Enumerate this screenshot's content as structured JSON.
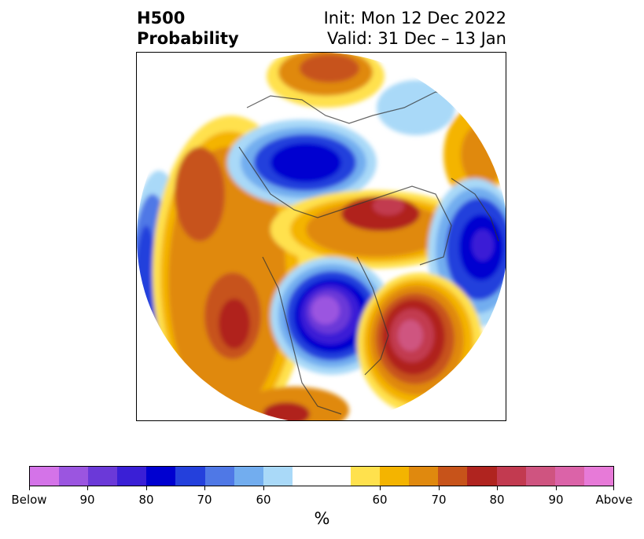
{
  "title": {
    "left_line1": "H500",
    "left_line2": "Probability",
    "right_line1": "Init: Mon 12 Dec 2022",
    "right_line2": "Valid: 31 Dec – 13 Jan"
  },
  "colorbar": {
    "label": "%",
    "colors": [
      "#d473e8",
      "#9b55e0",
      "#6b39d8",
      "#3a1fd6",
      "#0000d0",
      "#2440dc",
      "#4f78e6",
      "#72adef",
      "#a9d9f8",
      "#ffffff",
      "#ffffff",
      "#ffe14d",
      "#f4b400",
      "#e0890e",
      "#c7531a",
      "#b0241f",
      "#c23a50",
      "#cf5480",
      "#db63a8",
      "#e77ad8"
    ],
    "tick_labels": [
      "Below",
      "90",
      "80",
      "70",
      "60",
      "60",
      "70",
      "80",
      "90",
      "Above"
    ]
  },
  "map": {
    "projection": "polar-stereographic",
    "region": "Northern Hemisphere"
  }
}
